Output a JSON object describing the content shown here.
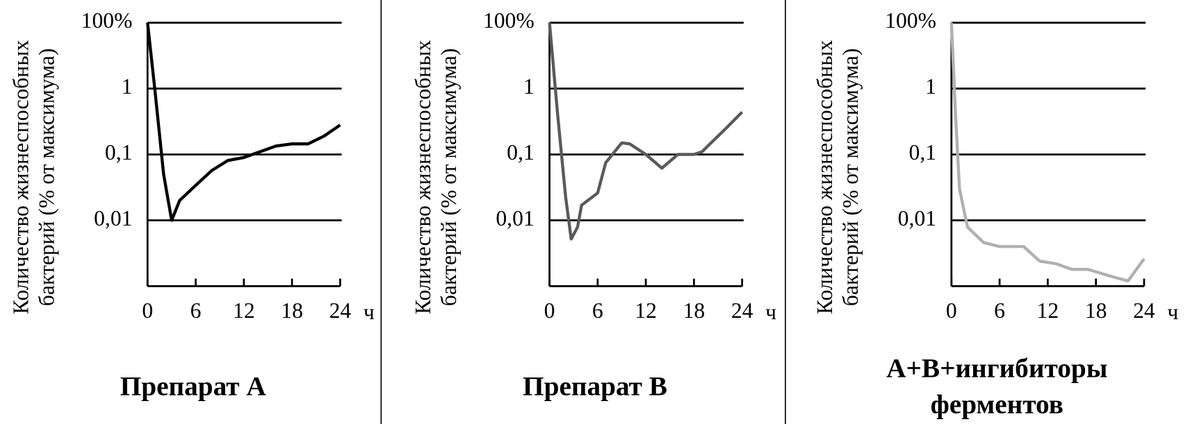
{
  "chart_data": [
    {
      "type": "line",
      "title": "Препарат А",
      "ylabel": [
        "Количество жизнеспособных",
        "бактерий (% от максимума)"
      ],
      "xlabel": "ч",
      "xlim": [
        0,
        24
      ],
      "xticks": [
        0,
        6,
        12,
        18,
        24
      ],
      "ylim": [
        0.001,
        100
      ],
      "log_scale": true,
      "yticks": [
        {
          "value": 0.01,
          "label": "0,01"
        },
        {
          "value": 0.1,
          "label": "0,1"
        },
        1,
        {
          "value": 100,
          "label": "100%"
        }
      ],
      "grid": true,
      "series": [
        {
          "color": "#000000",
          "x": [
            0,
            0.9,
            2,
            3,
            4,
            6,
            8,
            10,
            12,
            14,
            16,
            18,
            20,
            22,
            24
          ],
          "values": [
            100,
            1,
            0.05,
            0.01,
            0.02,
            0.034,
            0.057,
            0.081,
            0.09,
            0.11,
            0.134,
            0.145,
            0.145,
            0.19,
            0.28
          ]
        }
      ]
    },
    {
      "type": "line",
      "title": "Препарат В",
      "ylabel": [
        "Количество жизнеспособных",
        "бактерий (% от максимума)"
      ],
      "xlabel": "ч",
      "xlim": [
        0,
        24
      ],
      "xticks": [
        0,
        6,
        12,
        18,
        24
      ],
      "ylim": [
        0.001,
        100
      ],
      "log_scale": true,
      "yticks": [
        {
          "value": 0.01,
          "label": "0,01"
        },
        {
          "value": 0.1,
          "label": "0,1"
        },
        1,
        {
          "value": 100,
          "label": "100%"
        }
      ],
      "grid": true,
      "series": [
        {
          "color": "#5a5a5a",
          "x": [
            0,
            1,
            2,
            2.7,
            3.5,
            4,
            6,
            7,
            9,
            10,
            12,
            14,
            16,
            18,
            19,
            20,
            22,
            24
          ],
          "values": [
            100,
            0.42,
            0.023,
            0.0052,
            0.0079,
            0.017,
            0.026,
            0.075,
            0.15,
            0.145,
            0.1,
            0.062,
            0.1,
            0.1,
            0.11,
            0.145,
            0.25,
            0.44
          ]
        }
      ]
    },
    {
      "type": "line",
      "title": "А+В+ингибиторы ферментов",
      "ylabel": [
        "Количество жизнеспособных",
        "бактерий (% от максимума)"
      ],
      "xlabel": "ч",
      "xlim": [
        0,
        24
      ],
      "xticks": [
        0,
        6,
        12,
        18,
        24
      ],
      "ylim": [
        0.001,
        100
      ],
      "log_scale": true,
      "yticks": [
        {
          "value": 0.01,
          "label": "0,01"
        },
        {
          "value": 0.1,
          "label": "0,1"
        },
        1,
        {
          "value": 100,
          "label": "100%"
        }
      ],
      "grid": true,
      "series": [
        {
          "color": "#b0b0b0",
          "x": [
            0,
            0.5,
            1,
            2,
            4,
            6,
            9,
            10,
            11,
            13,
            15,
            17,
            20,
            22,
            24
          ],
          "values": [
            100,
            0.42,
            0.03,
            0.0079,
            0.0046,
            0.004,
            0.004,
            0.0031,
            0.0024,
            0.0022,
            0.0018,
            0.0018,
            0.0014,
            0.0012,
            0.0026
          ]
        }
      ]
    }
  ]
}
